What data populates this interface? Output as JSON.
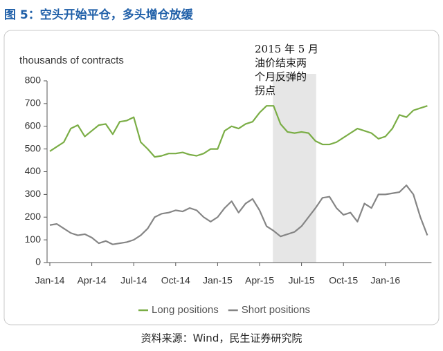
{
  "figure_title": "图 5：空头开始平仓，多头增仓放缓",
  "source": "资料来源：Wind，民生证券研究院",
  "chart_data": {
    "type": "line",
    "y_axis_label": "thousands of contracts",
    "annotation": [
      "2015 年 5 月",
      "油价结束两",
      "个月反弹的",
      "拐点"
    ],
    "highlight": {
      "from": 32,
      "to": 38,
      "color": "#e6e6e6"
    },
    "categories": [
      "Jan-14",
      null,
      null,
      null,
      null,
      null,
      "Apr-14",
      null,
      null,
      null,
      null,
      null,
      "Jul-14",
      null,
      null,
      null,
      null,
      null,
      "Oct-14",
      null,
      null,
      null,
      null,
      null,
      "Jan-15",
      null,
      null,
      null,
      null,
      null,
      "Apr-15",
      null,
      null,
      null,
      null,
      null,
      "Jul-15",
      null,
      null,
      null,
      null,
      null,
      "Oct-15",
      null,
      null,
      null,
      null,
      null,
      "Jan-16",
      null,
      null,
      null,
      null,
      null,
      null
    ],
    "series": [
      {
        "name": "Long positions",
        "color": "#7aad45",
        "values": [
          490,
          510,
          530,
          590,
          605,
          555,
          580,
          605,
          610,
          565,
          620,
          625,
          640,
          530,
          500,
          465,
          470,
          480,
          480,
          485,
          475,
          470,
          480,
          500,
          500,
          580,
          600,
          590,
          610,
          620,
          660,
          690,
          690,
          610,
          575,
          570,
          575,
          570,
          535,
          520,
          520,
          530,
          550,
          570,
          590,
          580,
          570,
          545,
          555,
          590,
          650,
          640,
          670,
          680,
          690
        ]
      },
      {
        "name": "Short positions",
        "color": "#858585",
        "values": [
          165,
          170,
          150,
          130,
          120,
          125,
          110,
          85,
          95,
          80,
          85,
          90,
          100,
          120,
          150,
          200,
          215,
          220,
          230,
          225,
          240,
          230,
          200,
          180,
          200,
          240,
          270,
          220,
          260,
          280,
          230,
          160,
          140,
          115,
          125,
          135,
          160,
          200,
          240,
          285,
          290,
          240,
          210,
          220,
          180,
          260,
          240,
          300,
          300,
          305,
          310,
          340,
          300,
          200,
          120
        ]
      }
    ],
    "ylim": [
      0,
      800
    ],
    "yticks": [
      0,
      100,
      200,
      300,
      400,
      500,
      600,
      700,
      800
    ],
    "grid": false,
    "legend": "bottom"
  }
}
